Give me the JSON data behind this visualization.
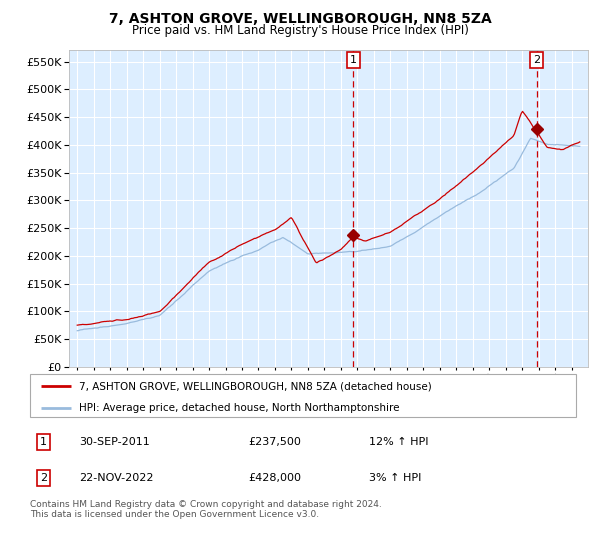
{
  "title": "7, ASHTON GROVE, WELLINGBOROUGH, NN8 5ZA",
  "subtitle": "Price paid vs. HM Land Registry's House Price Index (HPI)",
  "background_color": "#ffffff",
  "plot_bg_color": "#ddeeff",
  "grid_color": "#ffffff",
  "red_line_color": "#cc0000",
  "blue_line_color": "#99bbdd",
  "marker_color": "#990000",
  "vline_color": "#cc0000",
  "ylim": [
    0,
    570000
  ],
  "yticks": [
    0,
    50000,
    100000,
    150000,
    200000,
    250000,
    300000,
    350000,
    400000,
    450000,
    500000,
    550000
  ],
  "sale1_price": 237500,
  "sale1_x": 2011.75,
  "sale2_price": 428000,
  "sale2_x": 2022.89,
  "legend_line1": "7, ASHTON GROVE, WELLINGBOROUGH, NN8 5ZA (detached house)",
  "legend_line2": "HPI: Average price, detached house, North Northamptonshire",
  "footnote": "Contains HM Land Registry data © Crown copyright and database right 2024.\nThis data is licensed under the Open Government Licence v3.0.",
  "table_row1": [
    "1",
    "30-SEP-2011",
    "£237,500",
    "12% ↑ HPI"
  ],
  "table_row2": [
    "2",
    "22-NOV-2022",
    "£428,000",
    "3% ↑ HPI"
  ]
}
